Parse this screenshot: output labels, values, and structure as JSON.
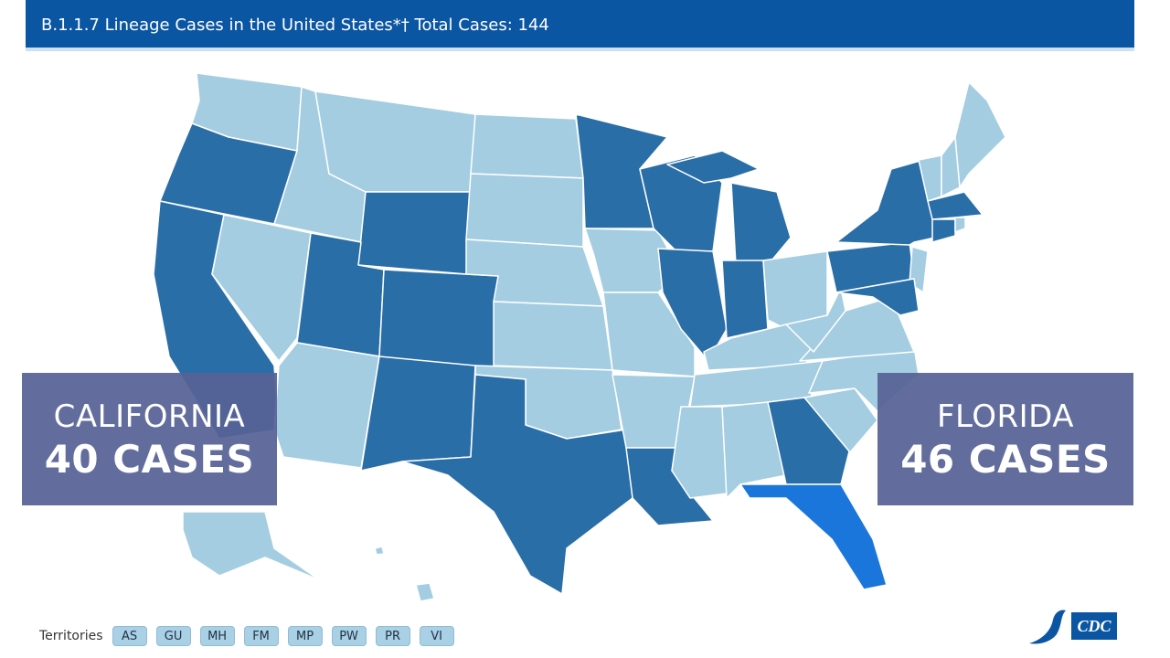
{
  "header": {
    "title": "B.1.1.7 Lineage Cases in the United States*† Total Cases: 144"
  },
  "callouts": [
    {
      "state": "CALIFORNIA",
      "cases": "40 CASES"
    },
    {
      "state": "FLORIDA",
      "cases": "46 CASES"
    }
  ],
  "territories": {
    "label": "Territories",
    "items": [
      "AS",
      "GU",
      "MH",
      "FM",
      "MP",
      "PW",
      "PR",
      "VI"
    ]
  },
  "logo": {
    "text": "CDC"
  }
}
